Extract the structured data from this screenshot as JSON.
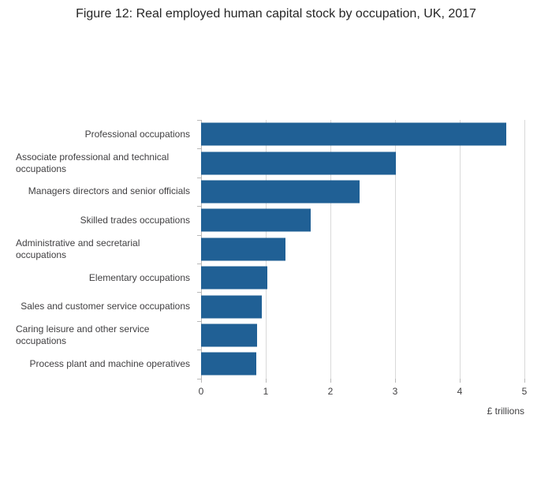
{
  "title": "Figure 12: Real employed human capital stock by occupation, UK, 2017",
  "chart_data": {
    "type": "bar",
    "orientation": "horizontal",
    "title": "Figure 12: Real employed human capital stock by occupation, UK, 2017",
    "categories": [
      "Professional occupations",
      "Associate professional and technical occupations",
      "Managers directors and senior officials",
      "Skilled trades occupations",
      "Administrative and secretarial occupations",
      "Elementary occupations",
      "Sales and customer service occupations",
      "Caring leisure and other service occupations",
      "Process plant and machine operatives"
    ],
    "values": [
      4.72,
      3.01,
      2.45,
      1.7,
      1.31,
      1.03,
      0.94,
      0.87,
      0.85
    ],
    "xlabel": "£ trillions",
    "ylabel": "",
    "xlim": [
      0,
      5
    ],
    "xticks": [
      0,
      1,
      2,
      3,
      4,
      5
    ],
    "grid": true,
    "legend": "none",
    "bar_color": "#206095",
    "gridline_color": "#d9d9d9",
    "axis_color": "#b9b9b9",
    "label_color": "#414042"
  }
}
